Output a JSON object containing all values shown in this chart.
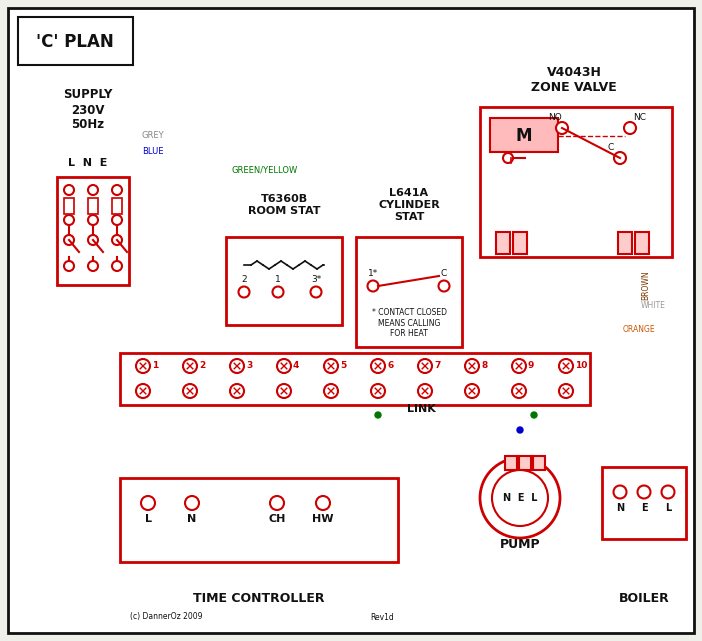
{
  "title": "'C' PLAN",
  "bg": "#f0f0ea",
  "RED": "#cc0000",
  "BLUE": "#0000cc",
  "GREEN": "#007700",
  "GREY": "#888888",
  "BROWN": "#7a3800",
  "ORANGE": "#cc5500",
  "BLACK": "#111111",
  "WHITE_W": "#999999",
  "PINK": "#ffbbbb",
  "supply_text": "SUPPLY\n230V\n50Hz",
  "lne": "L  N  E",
  "zone_valve": "V4043H\nZONE VALVE",
  "room_stat": "T6360B\nROOM STAT",
  "cyl_stat": "L641A\nCYLINDER\nSTAT",
  "time_ctrl": "TIME CONTROLLER",
  "pump": "PUMP",
  "boiler": "BOILER",
  "link": "LINK",
  "contact_note": "* CONTACT CLOSED\nMEANS CALLING\nFOR HEAT",
  "copyright": "(c) DannerOz 2009",
  "rev": "Rev1d"
}
